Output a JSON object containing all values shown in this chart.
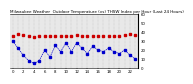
{
  "title": "Milwaukee Weather  Outdoor Temperature (vs) THSW Index per Hour (Last 24 Hours)",
  "temp_color": "#cc0000",
  "thsw_color": "#0000cc",
  "background_color": "#ffffff",
  "plot_bg_color": "#e8e8e8",
  "hours": [
    0,
    1,
    2,
    3,
    4,
    5,
    6,
    7,
    8,
    9,
    10,
    11,
    12,
    13,
    14,
    15,
    16,
    17,
    18,
    19,
    20,
    21,
    22,
    23
  ],
  "temp_values": [
    35,
    38,
    37,
    35,
    34,
    35,
    35,
    35,
    35,
    35,
    36,
    36,
    37,
    36,
    35,
    35,
    35,
    35,
    36,
    36,
    36,
    37,
    38,
    37
  ],
  "thsw_values": [
    30,
    22,
    14,
    8,
    5,
    8,
    20,
    12,
    25,
    18,
    28,
    18,
    28,
    22,
    16,
    24,
    20,
    18,
    22,
    18,
    16,
    20,
    14,
    10
  ],
  "ylim_min": 0,
  "ylim_max": 60,
  "ytick_step": 10,
  "grid_color": "#aaaaaa",
  "title_fontsize": 3.0,
  "tick_labelsize": 2.8,
  "marker_size": 1.5,
  "line_width": 0.5
}
